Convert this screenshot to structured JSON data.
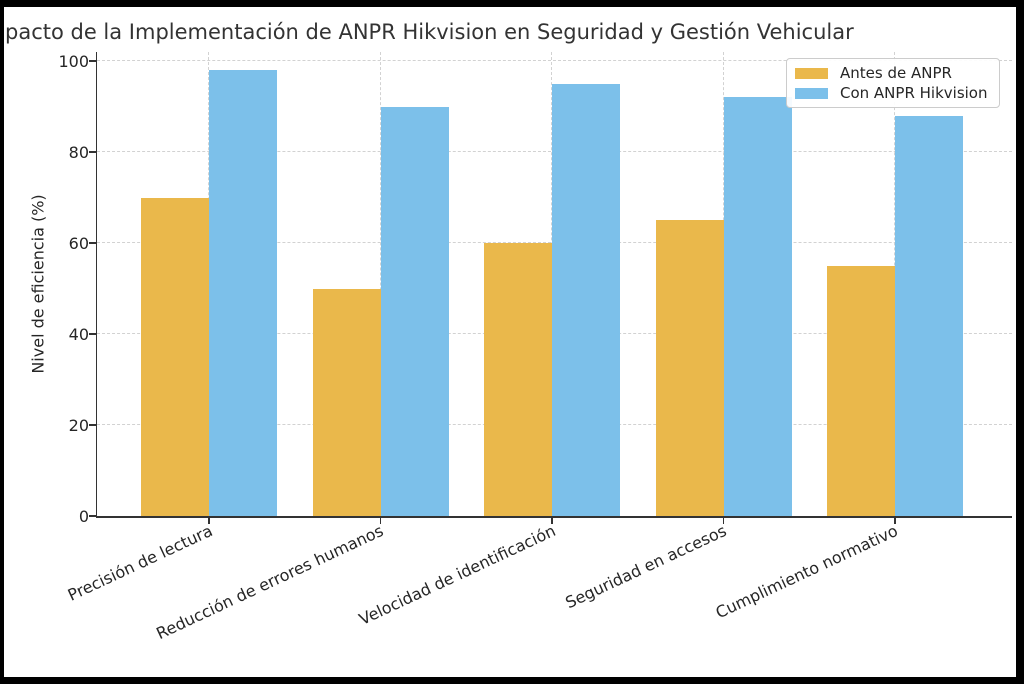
{
  "chart_data": {
    "type": "bar",
    "title": "pacto de la Implementación de ANPR Hikvision en Seguridad y Gestión Vehicular",
    "categories": [
      "Precisión de lectura",
      "Reducción de errores humanos",
      "Velocidad de identificación",
      "Seguridad en accesos",
      "Cumplimiento normativo"
    ],
    "series": [
      {
        "name": "Antes de ANPR",
        "values": [
          70,
          50,
          60,
          65,
          55
        ],
        "color": "#EAB84B"
      },
      {
        "name": "Con ANPR Hikvision",
        "values": [
          98,
          90,
          95,
          92,
          88
        ],
        "color": "#7CC0EA"
      }
    ],
    "xlabel": "",
    "ylabel": "Nivel de eficiencia (%)",
    "yticks": [
      0,
      20,
      40,
      60,
      80,
      100
    ],
    "ylim": [
      0,
      102
    ],
    "grid": true,
    "grid_style": "dashed",
    "legend_position": "upper right",
    "bar_grouping": "grouped",
    "xtick_rotation_deg": 25,
    "text_color": "#262626",
    "axis_color": "#333333",
    "grid_color": "#d2d2d2",
    "background_color": "#ffffff",
    "frame_color": "#000000"
  }
}
